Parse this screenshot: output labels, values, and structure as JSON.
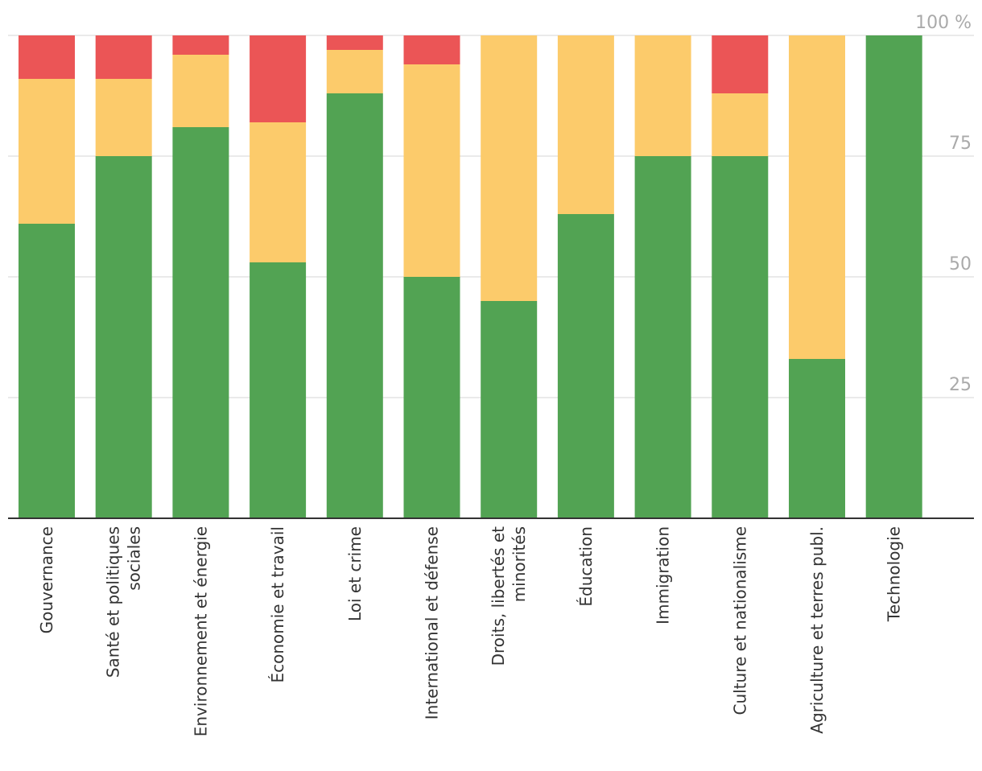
{
  "chart_data": {
    "type": "bar",
    "stacked": true,
    "categories": [
      "Gouvernance",
      "Santé et politiques sociales",
      "Environnement et énergie",
      "Économie et travail",
      "Loi et crime",
      "International et défense",
      "Droits, libertés et minorités",
      "Éducation",
      "Immigration",
      "Culture et nationalisme",
      "Agriculture et terres publ.",
      "Technologie"
    ],
    "category_lines": [
      [
        "Gouvernance"
      ],
      [
        "Santé et politiques",
        "sociales"
      ],
      [
        "Environnement et énergie"
      ],
      [
        "Économie et travail"
      ],
      [
        "Loi et crime"
      ],
      [
        "International et défense"
      ],
      [
        "Droits, libertés et",
        "minorités"
      ],
      [
        "Éducation"
      ],
      [
        "Immigration"
      ],
      [
        "Culture et nationalisme"
      ],
      [
        "Agriculture et terres publ."
      ],
      [
        "Technologie"
      ]
    ],
    "series": [
      {
        "name": "green",
        "color": "#52a353",
        "values": [
          61,
          75,
          81,
          53,
          88,
          50,
          45,
          63,
          75,
          75,
          33,
          100
        ]
      },
      {
        "name": "yellow",
        "color": "#fccb6b",
        "values": [
          30,
          16,
          15,
          29,
          9,
          44,
          55,
          37,
          25,
          13,
          67,
          0
        ]
      },
      {
        "name": "red",
        "color": "#eb5556",
        "values": [
          9,
          9,
          4,
          18,
          3,
          6,
          0,
          0,
          0,
          12,
          0,
          0
        ]
      }
    ],
    "ylim": [
      0,
      100
    ],
    "yticks": [
      25,
      50,
      75,
      100
    ],
    "ytick_labels": [
      "25",
      "50",
      "75",
      "100 %"
    ],
    "title": "",
    "xlabel": "",
    "ylabel": ""
  }
}
